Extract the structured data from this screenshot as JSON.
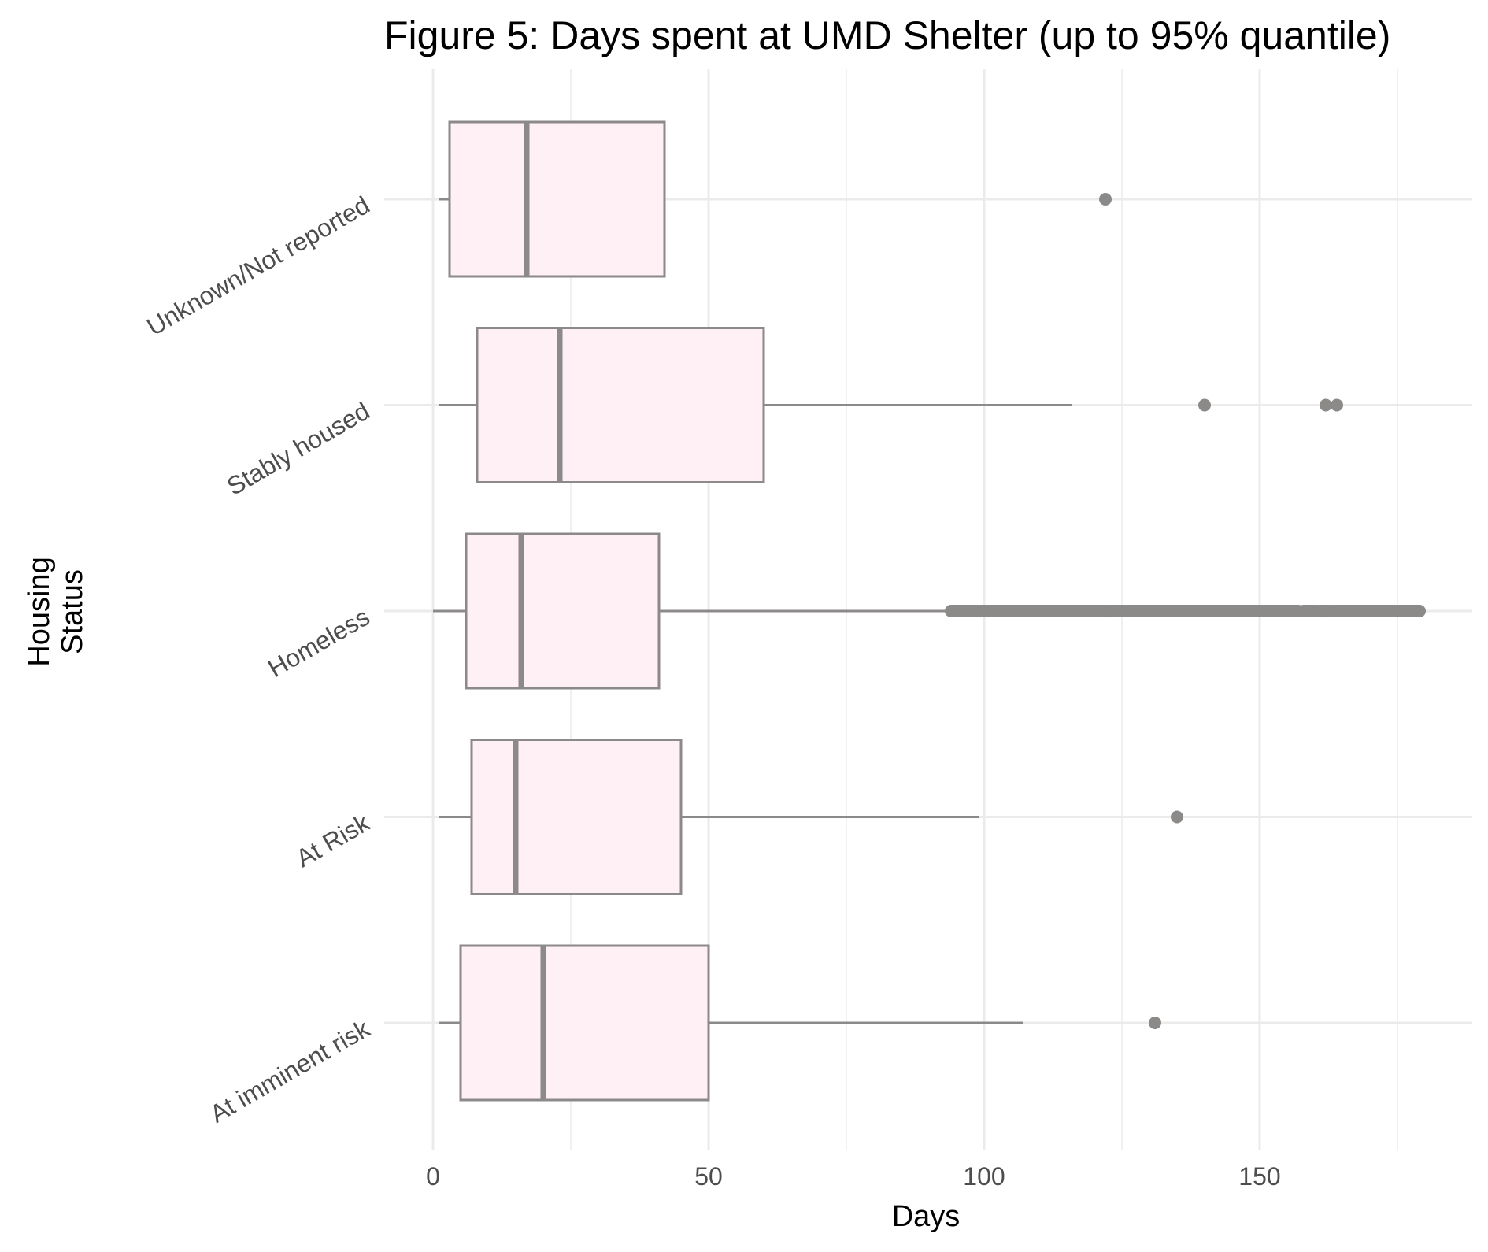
{
  "chart_data": {
    "type": "boxplot",
    "orientation": "horizontal",
    "title": "Figure 5: Days spent at UMD Shelter (up to 95% quantile)",
    "xlabel": "Days",
    "ylabel": "Housing\nStatus",
    "ylabel_lines": [
      "Housing",
      "Status"
    ],
    "xlim": [
      -8,
      180
    ],
    "x_ticks": [
      0,
      50,
      100,
      150
    ],
    "x_tick_labels": [
      "0",
      "50",
      "100",
      "150"
    ],
    "x_minor_gridlines": [
      25,
      75,
      125,
      175
    ],
    "grid": true,
    "legend": "none",
    "colors": {
      "box_fill": "#fff0f5",
      "box_stroke": "#8c8989",
      "grid": "#ebebeb"
    },
    "categories": [
      "Unknown/Not reported",
      "Stably housed",
      "Homeless",
      "At Risk",
      "At imminent risk"
    ],
    "boxes": [
      {
        "category": "Unknown/Not reported",
        "whisker_low": 1,
        "q1": 3,
        "median": 17,
        "q3": 42,
        "whisker_high": 42,
        "outliers": [
          122
        ]
      },
      {
        "category": "Stably housed",
        "whisker_low": 1,
        "q1": 8,
        "median": 23,
        "q3": 60,
        "whisker_high": 116,
        "outliers": [
          140,
          162,
          164
        ]
      },
      {
        "category": "Homeless",
        "whisker_low": 0,
        "q1": 6,
        "median": 16,
        "q3": 41,
        "whisker_high": 93,
        "outlier_range": [
          94,
          179
        ],
        "outlier_gaps": [
          [
            122.5,
            123
          ],
          [
            157,
            158
          ],
          [
            160.5,
            161
          ],
          [
            162.5,
            163
          ]
        ]
      },
      {
        "category": "At Risk",
        "whisker_low": 1,
        "q1": 7,
        "median": 15,
        "q3": 45,
        "whisker_high": 99,
        "outliers": [
          135
        ]
      },
      {
        "category": "At imminent risk",
        "whisker_low": 1,
        "q1": 5,
        "median": 20,
        "q3": 50,
        "whisker_high": 107,
        "outliers": [
          131
        ]
      }
    ]
  }
}
